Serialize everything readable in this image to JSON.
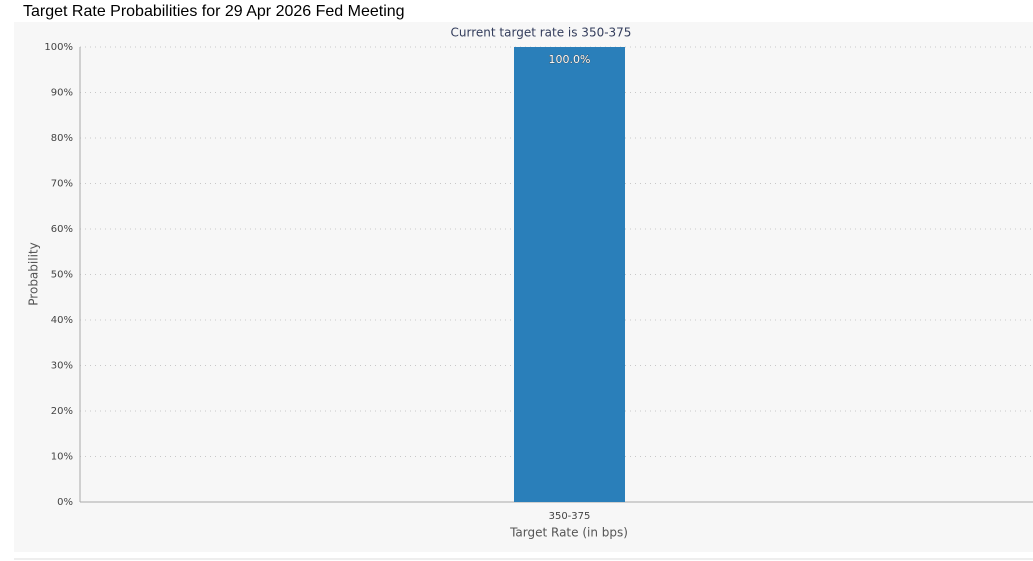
{
  "chart_data": {
    "type": "bar",
    "title": "Target Rate Probabilities for 29 Apr 2026 Fed Meeting",
    "subtitle": "Current target rate is 350-375",
    "x_label": "Target Rate (in bps)",
    "y_label": "Probability",
    "categories": [
      "350-375"
    ],
    "values": [
      100
    ],
    "value_labels": [
      "100.0%"
    ],
    "color": "#2a7fba",
    "ylim": [
      0,
      100
    ],
    "yticks": [
      {
        "value": 0,
        "label": "0%"
      },
      {
        "value": 10,
        "label": "10%"
      },
      {
        "value": 20,
        "label": "20%"
      },
      {
        "value": 30,
        "label": "30%"
      },
      {
        "value": 40,
        "label": "40%"
      },
      {
        "value": 50,
        "label": "50%"
      },
      {
        "value": 60,
        "label": "60%"
      },
      {
        "value": 70,
        "label": "70%"
      },
      {
        "value": 80,
        "label": "80%"
      },
      {
        "value": 90,
        "label": "90%"
      },
      {
        "value": 100,
        "label": "100%"
      }
    ],
    "grid": true
  }
}
